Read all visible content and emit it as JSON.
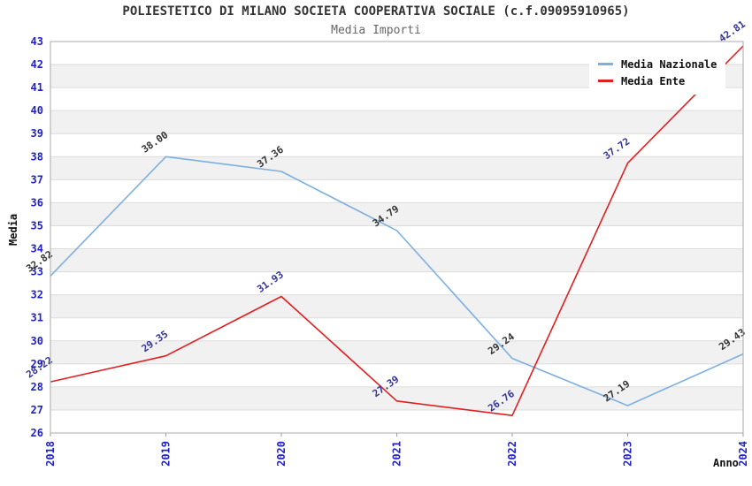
{
  "title": "POLIESTETICO DI MILANO SOCIETA COOPERATIVA SOCIALE (c.f.09095910965)",
  "subtitle": "Media Importi",
  "axes": {
    "x_label": "Anno",
    "y_label": "Media"
  },
  "colors": {
    "tick_label": "#1f1fcc",
    "band_gray": "#f1f1f1",
    "gridline": "#dcdcdc",
    "plot_border": "#aaaaaa",
    "nazionale_line": "#7cb0e0",
    "ente_line": "#e02020",
    "nazionale_point_label": "#333333",
    "ente_point_label": "#333399"
  },
  "chart_data": {
    "type": "line",
    "title": "POLIESTETICO DI MILANO SOCIETA COOPERATIVA SOCIALE (c.f.09095910965)",
    "subtitle": "Media Importi",
    "xlabel": "Anno",
    "ylabel": "Media",
    "x": [
      "2018",
      "2019",
      "2020",
      "2021",
      "2022",
      "2023",
      "2024"
    ],
    "ylim": [
      26,
      43
    ],
    "y_tick_step": 1,
    "grid": "horizontal gridlines with alternating white/gray unit bands",
    "legend_position": "top-right inside plot",
    "series": [
      {
        "name": "Media Nazionale",
        "color": "#7cb0e0",
        "label_color": "#333333",
        "values": [
          32.82,
          38.0,
          37.36,
          34.79,
          29.24,
          27.19,
          29.43
        ],
        "labels": [
          "32.82",
          "38.00",
          "37.36",
          "34.79",
          "29.24",
          "27.19",
          "29.43"
        ]
      },
      {
        "name": "Media Ente",
        "color": "#e02020",
        "label_color": "#333399",
        "values": [
          28.22,
          29.35,
          31.93,
          27.39,
          26.76,
          37.72,
          42.81
        ],
        "labels": [
          "28.22",
          "29.35",
          "31.93",
          "27.39",
          "26.76",
          "37.72",
          "42.81"
        ]
      }
    ]
  }
}
